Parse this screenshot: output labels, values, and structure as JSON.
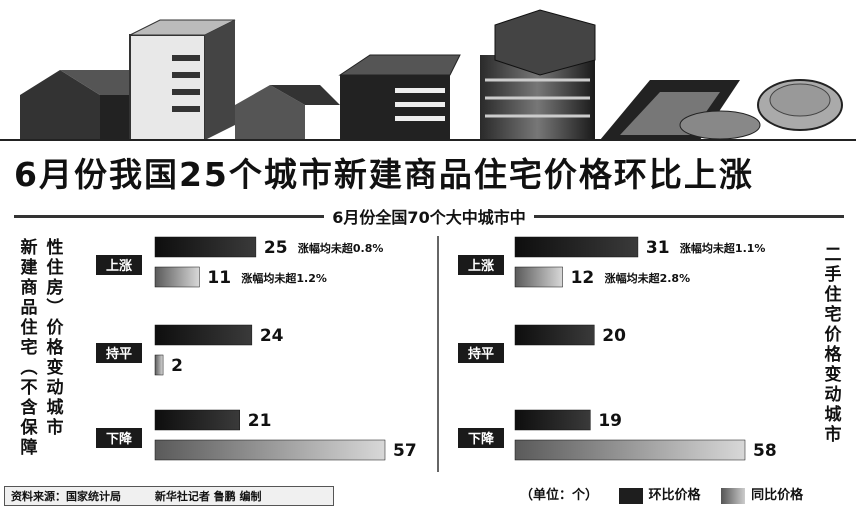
{
  "title": "6月份我国25个城市新建商品住宅价格环比上涨",
  "subtitle": "6月份全国70个大中城市中",
  "left_panel_label_1": "新建商品住宅（不含保障",
  "left_panel_label_2": "性住房）价格变动城市",
  "right_panel_label": "二手住宅价格变动城市",
  "categories": [
    "上涨",
    "持平",
    "下降"
  ],
  "colors": {
    "mom": "#1e1e1e",
    "yoy": "#9a9a9a"
  },
  "chart_data": [
    {
      "type": "bar",
      "title": "新建商品住宅（不含保障性住房）价格变动城市",
      "categories": [
        "上涨",
        "持平",
        "下降"
      ],
      "series": [
        {
          "name": "环比价格",
          "values": [
            25,
            24,
            21
          ]
        },
        {
          "name": "同比价格",
          "values": [
            11,
            2,
            57
          ]
        }
      ],
      "annotations": [
        {
          "category": "上涨",
          "series": "环比价格",
          "text": "涨幅均未超0.8%"
        },
        {
          "category": "上涨",
          "series": "同比价格",
          "text": "涨幅均未超1.2%"
        }
      ]
    },
    {
      "type": "bar",
      "title": "二手住宅价格变动城市",
      "categories": [
        "上涨",
        "持平",
        "下降"
      ],
      "series": [
        {
          "name": "环比价格",
          "values": [
            31,
            20,
            19
          ]
        },
        {
          "name": "同比价格",
          "values": [
            12,
            0,
            58
          ]
        }
      ],
      "annotations": [
        {
          "category": "上涨",
          "series": "环比价格",
          "text": "涨幅均未超1.1%"
        },
        {
          "category": "上涨",
          "series": "同比价格",
          "text": "涨幅均未超2.8%"
        }
      ]
    }
  ],
  "footer": {
    "source": "资料来源：国家统计局",
    "credit": "新华社记者 鲁鹏 编制"
  },
  "legend": {
    "unit": "（单位：个）",
    "mom_label": "环比价格",
    "yoy_label": "同比价格"
  }
}
